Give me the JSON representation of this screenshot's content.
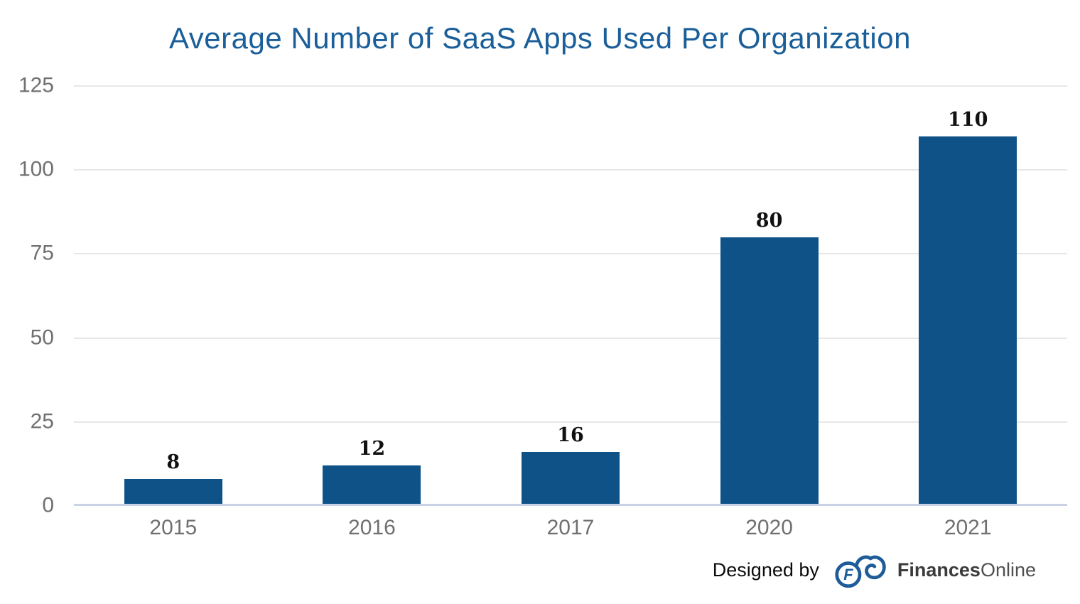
{
  "chart_data": {
    "type": "bar",
    "title": "Average Number of SaaS Apps Used Per Organization",
    "categories": [
      "2015",
      "2016",
      "2017",
      "2020",
      "2021"
    ],
    "values": [
      8,
      12,
      16,
      80,
      110
    ],
    "value_labels": [
      "8",
      "12",
      "16",
      "80",
      "110"
    ],
    "xlabel": "",
    "ylabel": "",
    "ylim": [
      0,
      125
    ],
    "yticks": [
      0,
      25,
      50,
      75,
      100,
      125
    ],
    "grid": "horizontal",
    "legend": "none",
    "colors": {
      "bar": "#0e5288",
      "title": "#1a5f99",
      "axis_labels": "#707070",
      "gridline": "#e7e7e7",
      "baseline": "#cad3e5",
      "value_labels": "#111111"
    }
  },
  "footer": {
    "designed_by": "Designed by",
    "logo_icon": "financesonline-cloud-logo",
    "logo_letter": "F",
    "logo_color": "#1d5c99",
    "brand_bold": "Finances",
    "brand_light": "Online",
    "brand_bold_color": "#3b3b3b",
    "brand_light_color": "#4f4f4f"
  }
}
